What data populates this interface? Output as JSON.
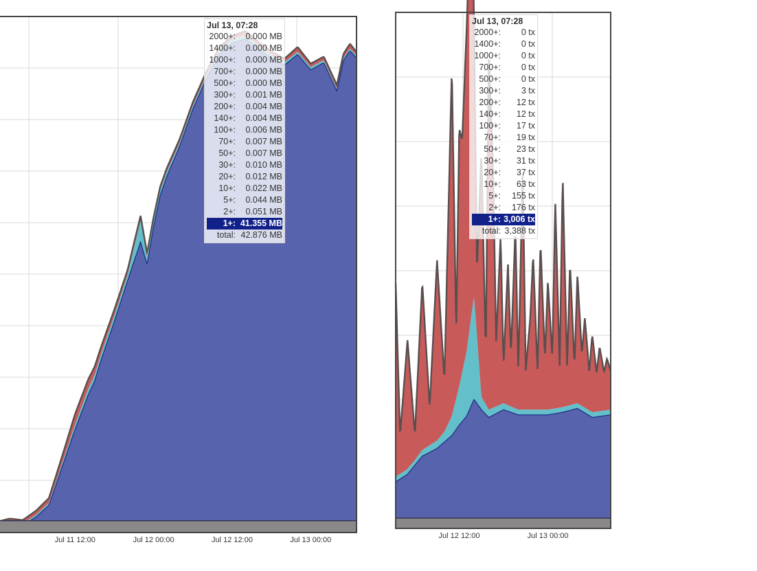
{
  "colors": {
    "base": "#5763ad",
    "tier2": "#63bfc9",
    "tier5": "#c95a5a",
    "top_line": "#5a4e4e",
    "bottom_band": "#8a8888",
    "highlight": "#12208a"
  },
  "chart_data": [
    {
      "type": "area",
      "x_tick_labels": [
        "Jul 11 12:00",
        "Jul 12 00:00",
        "Jul 12 12:00",
        "Jul 13 00:00"
      ],
      "x_ticks_hours": [
        12,
        24,
        36,
        48
      ],
      "x_range_hours": [
        0,
        55
      ],
      "y_range": [
        0,
        43.5
      ],
      "grid": true,
      "series": [
        {
          "key": "base",
          "x": [
            0,
            2,
            4,
            6,
            8,
            10,
            12,
            14,
            15,
            16,
            18,
            20,
            22,
            23,
            24,
            25,
            26,
            28,
            30,
            32,
            34,
            36,
            38,
            40,
            42,
            44,
            46,
            48,
            50,
            52,
            53,
            54,
            55
          ],
          "y": [
            0.6,
            0.8,
            0.6,
            1.3,
            2.3,
            5.5,
            8.7,
            11.6,
            12.8,
            14.6,
            17.8,
            21.2,
            24.5,
            22.6,
            25.8,
            28.4,
            30.0,
            32.6,
            35.7,
            38.2,
            40.3,
            41.3,
            41.6,
            40.8,
            40.0,
            39.4,
            40.3,
            39.0,
            39.6,
            37.2,
            39.8,
            40.6,
            40.0
          ]
        },
        {
          "key": "tier2",
          "x": [
            0,
            8,
            10,
            12,
            14,
            16,
            18,
            20,
            22,
            23,
            24,
            26,
            28,
            55
          ],
          "y": [
            0.1,
            0.2,
            0.3,
            0.4,
            0.5,
            0.5,
            0.5,
            0.5,
            1.8,
            0.6,
            0.5,
            0.4,
            0.3,
            0.2
          ]
        },
        {
          "key": "tier5",
          "x": [
            0,
            8,
            10,
            12,
            14,
            16,
            18,
            20,
            22,
            24,
            26,
            28,
            30,
            32,
            34,
            36,
            38,
            40,
            42,
            44,
            46,
            48,
            50,
            52,
            54,
            55
          ],
          "y": [
            0.2,
            0.4,
            0.6,
            0.9,
            0.8,
            0.6,
            0.5,
            0.4,
            0.4,
            0.3,
            0.3,
            0.3,
            0.3,
            0.3,
            0.3,
            0.3,
            0.4,
            0.3,
            0.3,
            0.3,
            0.4,
            0.3,
            0.3,
            0.3,
            0.4,
            0.3
          ]
        }
      ],
      "bottom_band": {
        "y": 1.0
      },
      "tooltip": {
        "title": "Jul 13, 07:28",
        "rows": [
          {
            "label": "2000+:",
            "value": "0.000 MB"
          },
          {
            "label": "1400+:",
            "value": "0.000 MB"
          },
          {
            "label": "1000+:",
            "value": "0.000 MB"
          },
          {
            "label": "700+:",
            "value": "0.000 MB"
          },
          {
            "label": "500+:",
            "value": "0.000 MB"
          },
          {
            "label": "300+:",
            "value": "0.001 MB"
          },
          {
            "label": "200+:",
            "value": "0.004 MB"
          },
          {
            "label": "140+:",
            "value": "0.004 MB"
          },
          {
            "label": "100+:",
            "value": "0.006 MB"
          },
          {
            "label": "70+:",
            "value": "0.007 MB"
          },
          {
            "label": "50+:",
            "value": "0.007 MB"
          },
          {
            "label": "30+:",
            "value": "0.010 MB"
          },
          {
            "label": "20+:",
            "value": "0.012 MB"
          },
          {
            "label": "10+:",
            "value": "0.022 MB"
          },
          {
            "label": "5+:",
            "value": "0.044 MB"
          },
          {
            "label": "2+:",
            "value": "0.051 MB"
          },
          {
            "label": "1+:",
            "value": "41.355 MB",
            "highlight": true
          },
          {
            "label": "total:",
            "value": "42.876 MB"
          }
        ]
      }
    },
    {
      "type": "area",
      "x_tick_labels": [
        "Jul 12 12:00",
        "Jul 13 00:00"
      ],
      "x_ticks_hours": [
        36,
        48
      ],
      "x_range_hours": [
        27.4,
        56.5
      ],
      "y_range": [
        0,
        4000
      ],
      "grid": true,
      "series": [
        {
          "key": "base",
          "x": [
            27.4,
            29,
            31,
            33,
            35,
            36,
            37,
            38,
            39,
            40,
            42,
            44,
            46,
            48,
            50,
            52,
            54,
            56.5
          ],
          "y": [
            360,
            420,
            560,
            620,
            720,
            800,
            870,
            1000,
            920,
            860,
            920,
            880,
            880,
            880,
            900,
            930,
            860,
            880
          ]
        },
        {
          "key": "tier2",
          "x": [
            27.4,
            30,
            33,
            34,
            35,
            36,
            37,
            38,
            39,
            40,
            44,
            48,
            52,
            56.5
          ],
          "y": [
            40,
            40,
            60,
            80,
            150,
            300,
            500,
            800,
            100,
            60,
            40,
            40,
            40,
            40
          ]
        },
        {
          "key": "tier5",
          "x": [
            27.4,
            28,
            29,
            30,
            31,
            32,
            33,
            34,
            35,
            35.6,
            36,
            36.4,
            37,
            37.6,
            38,
            38.4,
            39,
            39.6,
            40,
            40.6,
            41,
            41.6,
            42,
            42.6,
            43,
            43.6,
            44,
            44.6,
            45,
            45.6,
            46,
            46.6,
            47,
            47.6,
            48,
            48.6,
            49,
            49.6,
            50,
            50.6,
            51,
            51.6,
            52,
            52.6,
            53,
            53.6,
            54,
            54.6,
            55,
            55.6,
            56,
            56.5
          ],
          "y": [
            1500,
            300,
            1000,
            200,
            1300,
            300,
            1400,
            400,
            2700,
            500,
            2000,
            1800,
            2500,
            3300,
            2200,
            500,
            1900,
            400,
            2800,
            1800,
            500,
            1300,
            300,
            1100,
            400,
            1400,
            300,
            1900,
            300,
            700,
            1200,
            300,
            1300,
            400,
            1000,
            400,
            1600,
            300,
            1800,
            300,
            1100,
            300,
            1000,
            400,
            700,
            300,
            600,
            300,
            500,
            300,
            400,
            300
          ]
        }
      ],
      "bottom_band": {
        "y": 80
      },
      "tooltip": {
        "title": "Jul 13, 07:28",
        "rows": [
          {
            "label": "2000+:",
            "value": "0 tx"
          },
          {
            "label": "1400+:",
            "value": "0 tx"
          },
          {
            "label": "1000+:",
            "value": "0 tx"
          },
          {
            "label": "700+:",
            "value": "0 tx"
          },
          {
            "label": "500+:",
            "value": "0 tx"
          },
          {
            "label": "300+:",
            "value": "3 tx"
          },
          {
            "label": "200+:",
            "value": "12 tx"
          },
          {
            "label": "140+:",
            "value": "12 tx"
          },
          {
            "label": "100+:",
            "value": "17 tx"
          },
          {
            "label": "70+:",
            "value": "19 tx"
          },
          {
            "label": "50+:",
            "value": "23 tx"
          },
          {
            "label": "30+:",
            "value": "31 tx"
          },
          {
            "label": "20+:",
            "value": "37 tx"
          },
          {
            "label": "10+:",
            "value": "63 tx"
          },
          {
            "label": "5+:",
            "value": "155 tx"
          },
          {
            "label": "2+:",
            "value": "176 tx"
          },
          {
            "label": "1+:",
            "value": "3,006 tx",
            "highlight": true
          },
          {
            "label": "total:",
            "value": "3,388 tx"
          }
        ]
      }
    }
  ]
}
